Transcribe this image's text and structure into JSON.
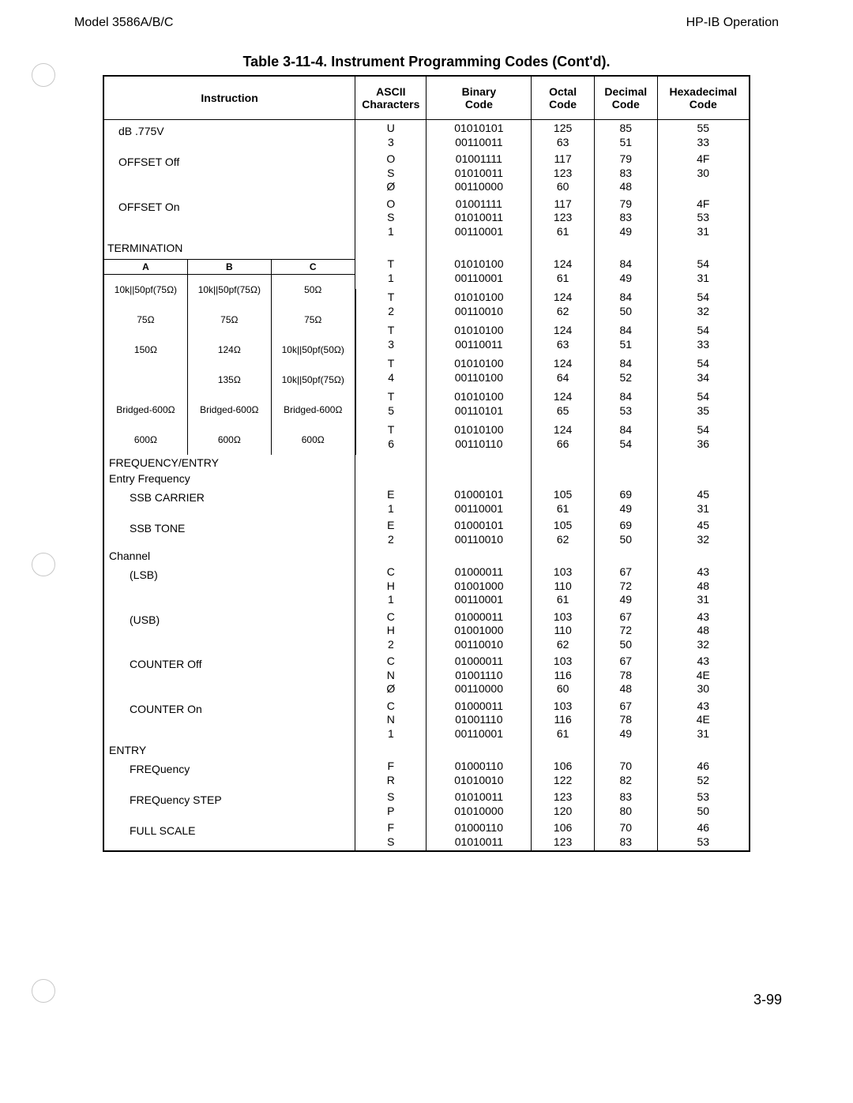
{
  "header": {
    "left": "Model 3586A/B/C",
    "right": "HP-IB Operation"
  },
  "tableTitle": "Table 3-11-4. Instrument Programming Codes (Cont'd).",
  "columns": {
    "instruction": "Instruction",
    "ascii": "ASCII\nCharacters",
    "binary": "Binary\nCode",
    "octal": "Octal\nCode",
    "decimal": "Decimal\nCode",
    "hex": "Hexadecimal\nCode"
  },
  "termination": {
    "label": "TERMINATION",
    "headers": [
      "A",
      "B",
      "C"
    ],
    "rows": [
      [
        "10k||50pf(75Ω)",
        "10k||50pf(75Ω)",
        "50Ω"
      ],
      [
        "75Ω",
        "75Ω",
        "75Ω"
      ],
      [
        "150Ω",
        "124Ω",
        "10k||50pf(50Ω)"
      ],
      [
        "",
        "135Ω",
        "10k||50pf(75Ω)"
      ],
      [
        "Bridged-600Ω",
        "Bridged-600Ω",
        "Bridged-600Ω"
      ],
      [
        "600Ω",
        "600Ω",
        "600Ω"
      ]
    ]
  },
  "rows": [
    {
      "instr": "dB .775V",
      "ascii": [
        "U",
        "3"
      ],
      "bin": [
        "01010101",
        "00110011"
      ],
      "oct": [
        "125",
        "63"
      ],
      "dec": [
        "85",
        "51"
      ],
      "hex": [
        "55",
        "33"
      ]
    },
    {
      "instr": "OFFSET Off",
      "ascii": [
        "O",
        "S",
        "Ø"
      ],
      "bin": [
        "01001111",
        "01010011",
        "00110000"
      ],
      "oct": [
        "117",
        "123",
        "60"
      ],
      "dec": [
        "79",
        "83",
        "48"
      ],
      "hex": [
        "4F",
        "",
        "30"
      ]
    },
    {
      "instr": "OFFSET On",
      "ascii": [
        "O",
        "S",
        "1"
      ],
      "bin": [
        "01001111",
        "01010011",
        "00110001"
      ],
      "oct": [
        "117",
        "123",
        "61"
      ],
      "dec": [
        "79",
        "83",
        "49"
      ],
      "hex": [
        "4F",
        "53",
        "31"
      ]
    },
    {
      "termIndex": 0,
      "ascii": [
        "T",
        "1"
      ],
      "bin": [
        "01010100",
        "00110001"
      ],
      "oct": [
        "124",
        "61"
      ],
      "dec": [
        "84",
        "49"
      ],
      "hex": [
        "54",
        "31"
      ]
    },
    {
      "termIndex": 1,
      "ascii": [
        "T",
        "2"
      ],
      "bin": [
        "01010100",
        "00110010"
      ],
      "oct": [
        "124",
        "62"
      ],
      "dec": [
        "84",
        "50"
      ],
      "hex": [
        "54",
        "32"
      ]
    },
    {
      "termIndex": 2,
      "ascii": [
        "T",
        "3"
      ],
      "bin": [
        "01010100",
        "00110011"
      ],
      "oct": [
        "124",
        "63"
      ],
      "dec": [
        "84",
        "51"
      ],
      "hex": [
        "54",
        "33"
      ]
    },
    {
      "termIndex": 3,
      "ascii": [
        "T",
        "4"
      ],
      "bin": [
        "01010100",
        "00110100"
      ],
      "oct": [
        "124",
        "64"
      ],
      "dec": [
        "84",
        "52"
      ],
      "hex": [
        "54",
        "34"
      ]
    },
    {
      "termIndex": 4,
      "ascii": [
        "T",
        "5"
      ],
      "bin": [
        "01010100",
        "00110101"
      ],
      "oct": [
        "124",
        "65"
      ],
      "dec": [
        "84",
        "53"
      ],
      "hex": [
        "54",
        "35"
      ]
    },
    {
      "termIndex": 5,
      "ascii": [
        "T",
        "6"
      ],
      "bin": [
        "01010100",
        "00110110"
      ],
      "oct": [
        "124",
        "66"
      ],
      "dec": [
        "84",
        "54"
      ],
      "hex": [
        "54",
        "36"
      ]
    },
    {
      "section": "FREQUENCY/ENTRY"
    },
    {
      "section": "Entry Frequency",
      "flush": true
    },
    {
      "instr": "SSB CARRIER",
      "indent": 2,
      "ascii": [
        "E",
        "1"
      ],
      "bin": [
        "01000101",
        "00110001"
      ],
      "oct": [
        "105",
        "61"
      ],
      "dec": [
        "69",
        "49"
      ],
      "hex": [
        "45",
        "31"
      ]
    },
    {
      "instr": "SSB TONE",
      "indent": 2,
      "ascii": [
        "E",
        "2"
      ],
      "bin": [
        "01000101",
        "00110010"
      ],
      "oct": [
        "105",
        "62"
      ],
      "dec": [
        "69",
        "50"
      ],
      "hex": [
        "45",
        "32"
      ]
    },
    {
      "section": "Channel",
      "flush": true
    },
    {
      "instr": "(LSB)",
      "indent": 2,
      "ascii": [
        "C",
        "H",
        "1"
      ],
      "bin": [
        "01000011",
        "01001000",
        "00110001"
      ],
      "oct": [
        "103",
        "110",
        "61"
      ],
      "dec": [
        "67",
        "72",
        "49"
      ],
      "hex": [
        "43",
        "48",
        "31"
      ]
    },
    {
      "instr": "(USB)",
      "indent": 2,
      "ascii": [
        "C",
        "H",
        "2"
      ],
      "bin": [
        "01000011",
        "01001000",
        "00110010"
      ],
      "oct": [
        "103",
        "110",
        "62"
      ],
      "dec": [
        "67",
        "72",
        "50"
      ],
      "hex": [
        "43",
        "48",
        "32"
      ]
    },
    {
      "instr": "COUNTER Off",
      "indent": 2,
      "ascii": [
        "C",
        "N",
        "Ø"
      ],
      "bin": [
        "01000011",
        "01001110",
        "00110000"
      ],
      "oct": [
        "103",
        "116",
        "60"
      ],
      "dec": [
        "67",
        "78",
        "48"
      ],
      "hex": [
        "43",
        "4E",
        "30"
      ]
    },
    {
      "instr": "COUNTER On",
      "indent": 2,
      "ascii": [
        "C",
        "N",
        "1"
      ],
      "bin": [
        "01000011",
        "01001110",
        "00110001"
      ],
      "oct": [
        "103",
        "116",
        "61"
      ],
      "dec": [
        "67",
        "78",
        "49"
      ],
      "hex": [
        "43",
        "4E",
        "31"
      ]
    },
    {
      "section": "ENTRY",
      "flush": true
    },
    {
      "instr": "FREQuency",
      "indent": 2,
      "ascii": [
        "F",
        "R"
      ],
      "bin": [
        "01000110",
        "01010010"
      ],
      "oct": [
        "106",
        "122"
      ],
      "dec": [
        "70",
        "82"
      ],
      "hex": [
        "46",
        "52"
      ]
    },
    {
      "instr": "FREQuency STEP",
      "indent": 2,
      "ascii": [
        "S",
        "P"
      ],
      "bin": [
        "01010011",
        "01010000"
      ],
      "oct": [
        "123",
        "120"
      ],
      "dec": [
        "83",
        "80"
      ],
      "hex": [
        "53",
        "50"
      ]
    },
    {
      "instr": "FULL SCALE",
      "indent": 2,
      "ascii": [
        "F",
        "S"
      ],
      "bin": [
        "01000110",
        "01010011"
      ],
      "oct": [
        "106",
        "123"
      ],
      "dec": [
        "70",
        "83"
      ],
      "hex": [
        "46",
        "53"
      ]
    }
  ],
  "pageNumber": "3-99"
}
